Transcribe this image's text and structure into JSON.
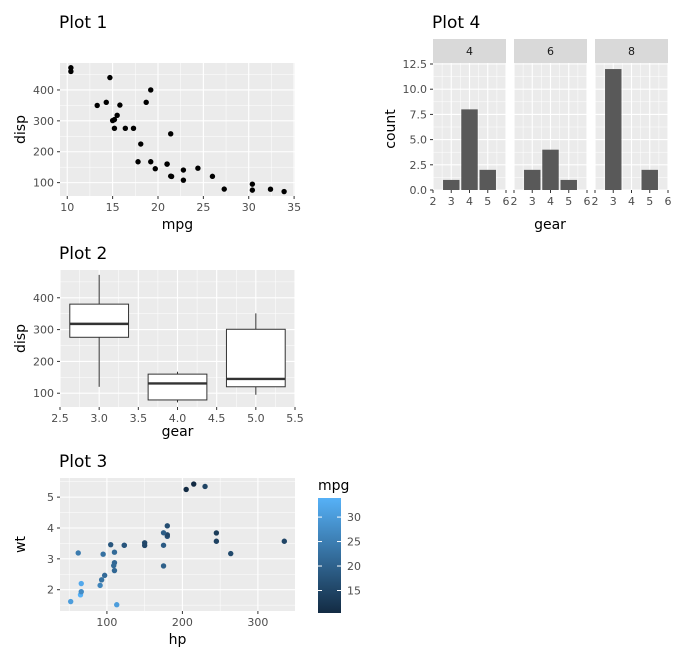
{
  "chart_data": [
    {
      "type": "scatter",
      "title": "Plot 1",
      "xlabel": "mpg",
      "ylabel": "disp",
      "xlim": [
        9.2,
        35.1
      ],
      "ylim": [
        56.7,
        487.3
      ],
      "xticks": [
        10,
        15,
        20,
        25,
        30,
        35
      ],
      "yticks": [
        100,
        200,
        300,
        400
      ],
      "grid": true,
      "points": [
        [
          21.0,
          160
        ],
        [
          21.0,
          160
        ],
        [
          22.8,
          108
        ],
        [
          21.4,
          258
        ],
        [
          18.7,
          360
        ],
        [
          18.1,
          225
        ],
        [
          14.3,
          360
        ],
        [
          24.4,
          146.7
        ],
        [
          22.8,
          140.8
        ],
        [
          19.2,
          167.6
        ],
        [
          17.8,
          167.6
        ],
        [
          16.4,
          275.8
        ],
        [
          17.3,
          275.8
        ],
        [
          15.2,
          275.8
        ],
        [
          10.4,
          472
        ],
        [
          10.4,
          460
        ],
        [
          14.7,
          440
        ],
        [
          32.4,
          78.7
        ],
        [
          30.4,
          75.7
        ],
        [
          33.9,
          71.1
        ],
        [
          21.5,
          120.1
        ],
        [
          15.5,
          318
        ],
        [
          15.2,
          304
        ],
        [
          13.3,
          350
        ],
        [
          19.2,
          400
        ],
        [
          27.3,
          79
        ],
        [
          26.0,
          120.3
        ],
        [
          30.4,
          95.1
        ],
        [
          15.8,
          351
        ],
        [
          19.7,
          145
        ],
        [
          15.0,
          301
        ],
        [
          21.4,
          121
        ]
      ]
    },
    {
      "type": "boxplot",
      "title": "Plot 2",
      "xlabel": "gear",
      "ylabel": "disp",
      "xlim": [
        2.5,
        5.5
      ],
      "ylim": [
        56.7,
        487.3
      ],
      "xticks": [
        "2.5",
        "3.0",
        "3.5",
        "4.0",
        "4.5",
        "5.0",
        "5.5"
      ],
      "yticks": [
        100,
        200,
        300,
        400
      ],
      "grid": true,
      "boxes": [
        {
          "x": 3,
          "whisker_low": 120.1,
          "q1": 275.8,
          "median": 318,
          "q3": 380,
          "whisker_high": 472
        },
        {
          "x": 4,
          "whisker_low": 71.1,
          "q1": 78.85,
          "median": 130.9,
          "q3": 160,
          "whisker_high": 167.6
        },
        {
          "x": 5,
          "whisker_low": 95.1,
          "q1": 120.3,
          "median": 145,
          "q3": 301,
          "whisker_high": 351
        }
      ]
    },
    {
      "type": "scatter",
      "title": "Plot 3",
      "xlabel": "hp",
      "ylabel": "wt",
      "xlim": [
        37.85,
        349.15
      ],
      "ylim": [
        1.31,
        5.62
      ],
      "xticks": [
        100,
        200,
        300
      ],
      "yticks": [
        2,
        3,
        4,
        5
      ],
      "grid": true,
      "color_legend": {
        "title": "mpg",
        "ticks": [
          15,
          20,
          25,
          30
        ],
        "min": 10.4,
        "max": 33.9,
        "low_color": "#132B43",
        "high_color": "#56B1F7"
      },
      "points": [
        [
          110,
          2.62,
          21.0
        ],
        [
          110,
          2.875,
          21.0
        ],
        [
          93,
          2.32,
          22.8
        ],
        [
          110,
          3.215,
          21.4
        ],
        [
          175,
          3.44,
          18.7
        ],
        [
          105,
          3.46,
          18.1
        ],
        [
          245,
          3.57,
          14.3
        ],
        [
          62,
          3.19,
          24.4
        ],
        [
          95,
          3.15,
          22.8
        ],
        [
          123,
          3.44,
          19.2
        ],
        [
          123,
          3.44,
          17.8
        ],
        [
          180,
          4.07,
          16.4
        ],
        [
          180,
          3.73,
          17.3
        ],
        [
          180,
          3.78,
          15.2
        ],
        [
          205,
          5.25,
          10.4
        ],
        [
          215,
          5.424,
          10.4
        ],
        [
          230,
          5.345,
          14.7
        ],
        [
          66,
          2.2,
          32.4
        ],
        [
          52,
          1.615,
          30.4
        ],
        [
          65,
          1.835,
          33.9
        ],
        [
          97,
          2.465,
          21.5
        ],
        [
          150,
          3.52,
          15.5
        ],
        [
          150,
          3.435,
          15.2
        ],
        [
          245,
          3.84,
          13.3
        ],
        [
          175,
          3.845,
          19.2
        ],
        [
          66,
          1.935,
          27.3
        ],
        [
          91,
          2.14,
          26.0
        ],
        [
          113,
          1.513,
          30.4
        ],
        [
          264,
          3.17,
          15.8
        ],
        [
          175,
          2.77,
          19.7
        ],
        [
          335,
          3.57,
          15.0
        ],
        [
          109,
          2.78,
          21.4
        ]
      ]
    },
    {
      "type": "bar",
      "title": "Plot 4",
      "xlabel": "gear",
      "ylabel": "count",
      "xlim": [
        2,
        6
      ],
      "ylim": [
        0,
        12.6
      ],
      "xticks": [
        2,
        3,
        4,
        5,
        6
      ],
      "yticks": [
        "0.0",
        "2.5",
        "5.0",
        "7.5",
        "10.0",
        "12.5"
      ],
      "grid": true,
      "facets": [
        {
          "label": "4",
          "categories": [
            3,
            4,
            5
          ],
          "values": [
            1,
            8,
            2
          ]
        },
        {
          "label": "6",
          "categories": [
            3,
            4,
            5
          ],
          "values": [
            2,
            4,
            1
          ]
        },
        {
          "label": "8",
          "categories": [
            3,
            5
          ],
          "values": [
            12,
            2
          ]
        }
      ]
    }
  ],
  "colors": {
    "panel": "#EBEBEB",
    "grid_major": "#FFFFFF",
    "strip": "#D9D9D9",
    "ink": "#000000",
    "bar": "#595959",
    "tick_text": "#4D4D4D"
  }
}
